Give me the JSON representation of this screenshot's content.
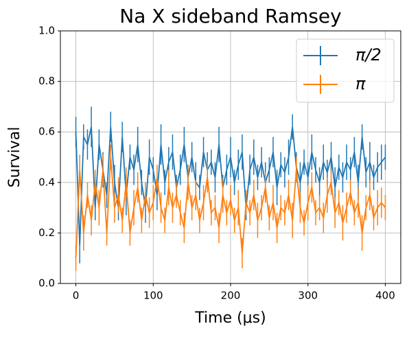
{
  "chart_data": {
    "type": "errorbar_line",
    "title": "Na X sideband Ramsey",
    "xlabel": "Time (μs)",
    "ylabel": "Survival",
    "xlim": [
      -20,
      420
    ],
    "xticks": [
      0,
      100,
      200,
      300,
      400
    ],
    "ylim": [
      0,
      1
    ],
    "yticks": [
      {
        "value": 0,
        "label": "0.0"
      },
      0.2,
      0.4,
      0.6,
      0.8,
      {
        "value": 1,
        "label": "1.0"
      }
    ],
    "grid": true,
    "legend": "upper right",
    "x": [
      0,
      5,
      10,
      15,
      20,
      25,
      30,
      35,
      40,
      45,
      50,
      55,
      60,
      65,
      70,
      75,
      80,
      85,
      90,
      95,
      100,
      105,
      110,
      115,
      120,
      125,
      130,
      135,
      140,
      145,
      150,
      155,
      160,
      165,
      170,
      175,
      180,
      185,
      190,
      195,
      200,
      205,
      210,
      215,
      220,
      225,
      230,
      235,
      240,
      245,
      250,
      255,
      260,
      265,
      270,
      275,
      280,
      285,
      290,
      295,
      300,
      305,
      310,
      315,
      320,
      325,
      330,
      335,
      340,
      345,
      350,
      355,
      360,
      365,
      370,
      375,
      380,
      385,
      390,
      395,
      400
    ],
    "series": [
      {
        "name": "π/2",
        "color": "#1f77b4",
        "values": [
          0.6,
          0.15,
          0.58,
          0.55,
          0.62,
          0.3,
          0.55,
          0.45,
          0.35,
          0.62,
          0.4,
          0.3,
          0.58,
          0.35,
          0.5,
          0.45,
          0.55,
          0.4,
          0.3,
          0.5,
          0.45,
          0.35,
          0.55,
          0.4,
          0.48,
          0.52,
          0.38,
          0.45,
          0.55,
          0.42,
          0.5,
          0.4,
          0.38,
          0.52,
          0.45,
          0.48,
          0.42,
          0.55,
          0.38,
          0.45,
          0.5,
          0.4,
          0.47,
          0.52,
          0.3,
          0.45,
          0.5,
          0.42,
          0.48,
          0.4,
          0.45,
          0.52,
          0.38,
          0.47,
          0.44,
          0.5,
          0.62,
          0.46,
          0.4,
          0.48,
          0.42,
          0.52,
          0.45,
          0.4,
          0.48,
          0.44,
          0.5,
          0.38,
          0.46,
          0.42,
          0.48,
          0.45,
          0.52,
          0.4,
          0.58,
          0.44,
          0.48,
          0.42,
          0.46,
          0.48,
          0.5
        ],
        "errors": [
          0.06,
          0.07,
          0.05,
          0.06,
          0.08,
          0.05,
          0.06,
          0.07,
          0.05,
          0.06,
          0.07,
          0.05,
          0.06,
          0.08,
          0.05,
          0.06,
          0.07,
          0.05,
          0.06,
          0.07,
          0.05,
          0.06,
          0.08,
          0.05,
          0.06,
          0.07,
          0.05,
          0.06,
          0.07,
          0.05,
          0.06,
          0.08,
          0.05,
          0.06,
          0.07,
          0.05,
          0.06,
          0.07,
          0.05,
          0.06,
          0.08,
          0.05,
          0.06,
          0.07,
          0.05,
          0.06,
          0.07,
          0.05,
          0.06,
          0.08,
          0.05,
          0.06,
          0.07,
          0.05,
          0.06,
          0.07,
          0.05,
          0.06,
          0.08,
          0.05,
          0.06,
          0.07,
          0.05,
          0.06,
          0.07,
          0.05,
          0.06,
          0.08,
          0.05,
          0.06,
          0.07,
          0.05,
          0.06,
          0.07,
          0.05,
          0.06,
          0.08,
          0.05,
          0.06,
          0.07,
          0.05
        ]
      },
      {
        "name": "π",
        "color": "#ff7f0e",
        "values": [
          0.1,
          0.45,
          0.2,
          0.35,
          0.25,
          0.4,
          0.3,
          0.45,
          0.2,
          0.5,
          0.3,
          0.35,
          0.25,
          0.4,
          0.2,
          0.3,
          0.38,
          0.25,
          0.35,
          0.28,
          0.32,
          0.42,
          0.3,
          0.25,
          0.38,
          0.3,
          0.35,
          0.28,
          0.22,
          0.4,
          0.3,
          0.35,
          0.25,
          0.32,
          0.42,
          0.28,
          0.3,
          0.22,
          0.35,
          0.28,
          0.33,
          0.25,
          0.3,
          0.12,
          0.32,
          0.28,
          0.35,
          0.25,
          0.3,
          0.38,
          0.26,
          0.32,
          0.22,
          0.3,
          0.28,
          0.35,
          0.25,
          0.45,
          0.3,
          0.24,
          0.32,
          0.38,
          0.28,
          0.3,
          0.26,
          0.35,
          0.4,
          0.28,
          0.32,
          0.24,
          0.3,
          0.36,
          0.28,
          0.32,
          0.2,
          0.3,
          0.35,
          0.26,
          0.3,
          0.32,
          0.3
        ],
        "errors": [
          0.05,
          0.06,
          0.07,
          0.05,
          0.06,
          0.05,
          0.07,
          0.06,
          0.05,
          0.05,
          0.06,
          0.07,
          0.05,
          0.06,
          0.05,
          0.07,
          0.06,
          0.05,
          0.05,
          0.06,
          0.07,
          0.05,
          0.06,
          0.05,
          0.07,
          0.06,
          0.05,
          0.05,
          0.06,
          0.07,
          0.05,
          0.06,
          0.05,
          0.07,
          0.06,
          0.05,
          0.05,
          0.06,
          0.07,
          0.05,
          0.06,
          0.05,
          0.07,
          0.06,
          0.05,
          0.05,
          0.06,
          0.07,
          0.05,
          0.06,
          0.05,
          0.07,
          0.06,
          0.05,
          0.05,
          0.06,
          0.07,
          0.05,
          0.06,
          0.05,
          0.07,
          0.06,
          0.05,
          0.05,
          0.06,
          0.07,
          0.05,
          0.06,
          0.05,
          0.07,
          0.06,
          0.05,
          0.05,
          0.06,
          0.07,
          0.05,
          0.06,
          0.05,
          0.07,
          0.06,
          0.05
        ]
      }
    ]
  }
}
